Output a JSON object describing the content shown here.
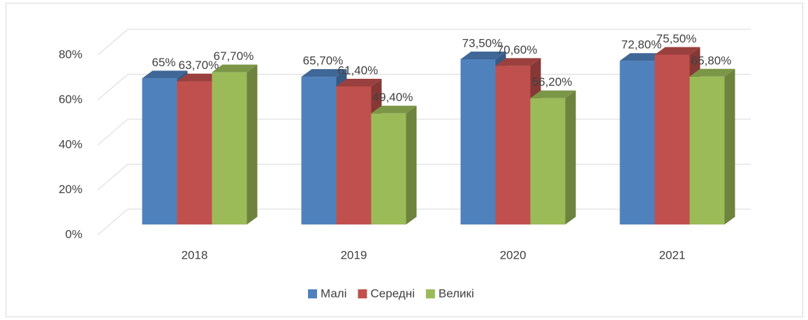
{
  "chart_data": {
    "type": "bar3d",
    "categories": [
      "2018",
      "2019",
      "2020",
      "2021"
    ],
    "series": [
      {
        "name": "Малі",
        "color": "#4f81bd",
        "values": [
          65,
          65.7,
          73.5,
          72.8
        ],
        "value_labels": [
          "65%",
          "65,70%",
          "73,50%",
          "72,80%"
        ]
      },
      {
        "name": "Середні",
        "color": "#c0504d",
        "values": [
          63.7,
          61.4,
          70.6,
          75.5
        ],
        "value_labels": [
          "63,70%",
          "61,40%",
          "70,60%",
          "75,50%"
        ]
      },
      {
        "name": "Великі",
        "color": "#9bbb59",
        "values": [
          67.7,
          49.4,
          56.2,
          65.8
        ],
        "value_labels": [
          "67,70%",
          "49,40%",
          "56,20%",
          "65,80%"
        ]
      }
    ],
    "ylim": [
      0,
      80
    ],
    "yticks": [
      {
        "value": 0,
        "label": "0%"
      },
      {
        "value": 20,
        "label": "20%"
      },
      {
        "value": 40,
        "label": "40%"
      },
      {
        "value": 60,
        "label": "60%"
      },
      {
        "value": 80,
        "label": "80%"
      }
    ],
    "grid": true,
    "legend": "bottom"
  }
}
